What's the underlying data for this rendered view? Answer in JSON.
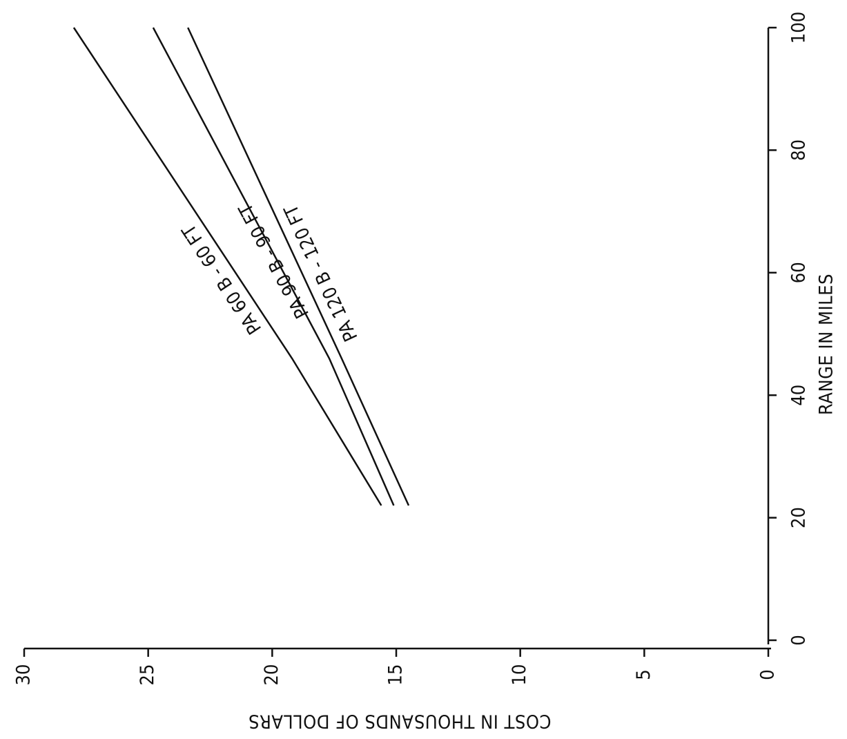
{
  "chart_data": {
    "type": "line",
    "orientation": "rotated-90-clockwise",
    "x_axis": {
      "label": "RANGE IN MILES",
      "range": [
        0,
        100
      ],
      "ticks": [
        0,
        20,
        40,
        60,
        80,
        100
      ],
      "tick_labels": [
        "0",
        "20",
        "40",
        "60",
        "80",
        "100"
      ]
    },
    "y_axis": {
      "label": "COST IN THOUSANDS OF DOLLARS",
      "range": [
        0,
        30
      ],
      "ticks": [
        0,
        5,
        10,
        15,
        20,
        25,
        30
      ],
      "tick_labels": [
        "0",
        "5",
        "10",
        "15",
        "20",
        "25",
        "30"
      ]
    },
    "grid": false,
    "legend": "none",
    "series": [
      {
        "name": "PA 60 B - 60 FT",
        "points": [
          [
            22,
            15.6
          ],
          [
            46,
            19.2
          ],
          [
            100,
            28.0
          ]
        ],
        "label_at": [
          59,
          22.0
        ]
      },
      {
        "name": "PA 90 B - 90 FT",
        "points": [
          [
            22,
            15.1
          ],
          [
            46,
            17.7
          ],
          [
            100,
            24.8
          ]
        ],
        "label_at": [
          62,
          19.9
        ]
      },
      {
        "name": "PA 120 B - 120 FT",
        "points": [
          [
            22,
            14.5
          ],
          [
            46,
            17.2
          ],
          [
            100,
            23.4
          ]
        ],
        "label_at": [
          60,
          18.0
        ]
      }
    ]
  }
}
